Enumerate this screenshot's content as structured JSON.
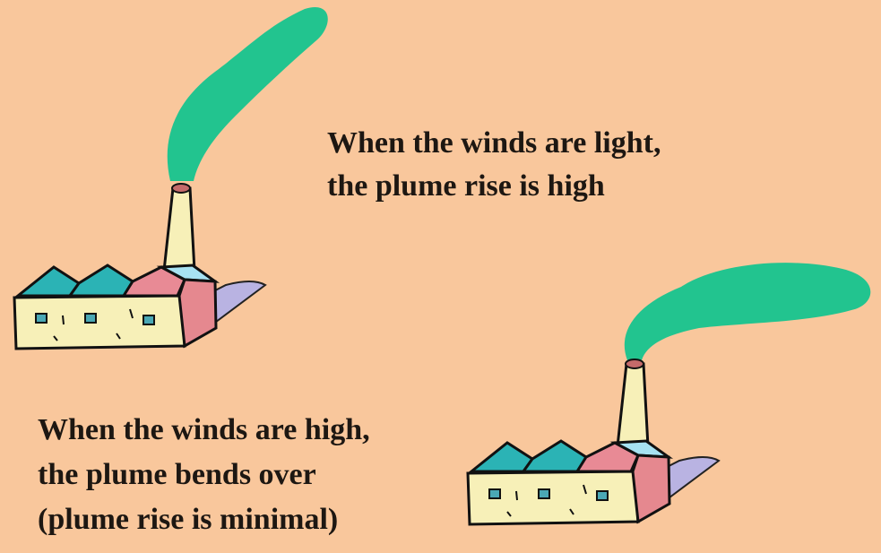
{
  "captions": [
    {
      "lines": [
        "When the winds are light,",
        "the plume rise is high"
      ]
    },
    {
      "lines": [
        "When the winds are high,",
        "the plume bends over",
        "(plume rise is minimal)"
      ]
    }
  ]
}
